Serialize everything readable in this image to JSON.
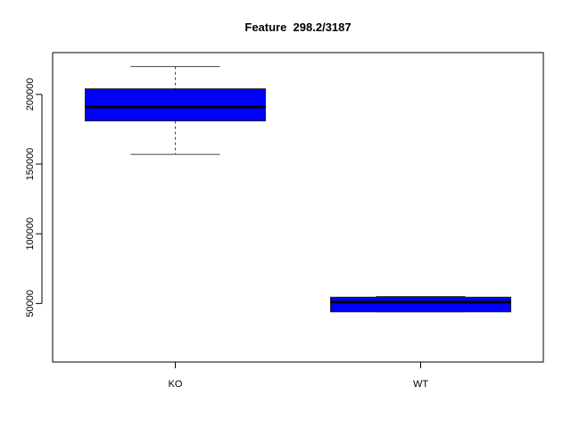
{
  "chart_data": {
    "type": "boxplot",
    "title": "Feature  298.2/3187",
    "xlabel": "",
    "ylabel": "",
    "categories": [
      "KO",
      "WT"
    ],
    "box_color": "#0000ff",
    "median_color": "#000000",
    "ylim": [
      8000,
      230000
    ],
    "y_ticks": [
      50000,
      100000,
      150000,
      200000
    ],
    "y_tick_labels": [
      "50000",
      "100000",
      "150000",
      "200000"
    ],
    "boxes": [
      {
        "category": "KO",
        "whisker_low": 157000,
        "q1": 181000,
        "median": 191000,
        "q3": 204000,
        "whisker_high": 220000
      },
      {
        "category": "WT",
        "whisker_low": 44000,
        "q1": 44000,
        "median": 51000,
        "q3": 54500,
        "whisker_high": 55000
      }
    ]
  }
}
